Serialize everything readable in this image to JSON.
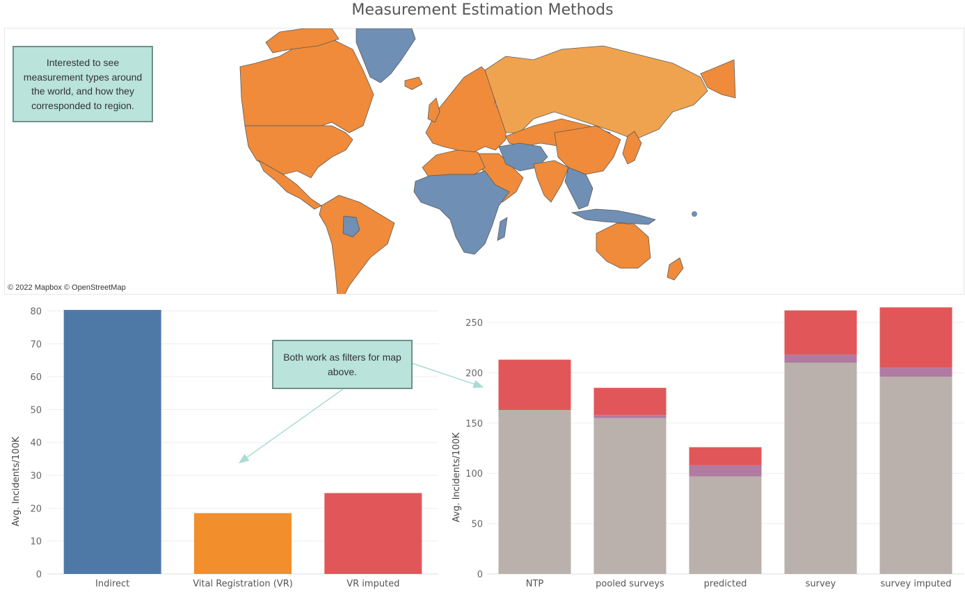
{
  "page": {
    "title": "Measurement Estimation Methods"
  },
  "map": {
    "attribution": "© 2022 Mapbox © OpenStreetMap",
    "colors": {
      "orange": "#ef8b3a",
      "light_orange": "#f0a34f",
      "blue": "#6f8fb5",
      "border": "#5a5a5a"
    },
    "annotation": "Interested to see measurement types around the world, and how they corresponded to region."
  },
  "filters_annotation": "Both work as filters for map above.",
  "chart_data": [
    {
      "type": "bar",
      "categories": [
        "Indirect",
        "Vital Registration (VR)",
        "VR imputed"
      ],
      "values": [
        80.3,
        18.5,
        24.6
      ],
      "colors": [
        "#4e79a7",
        "#f28e2b",
        "#e15759"
      ],
      "title": "",
      "xlabel": "",
      "ylabel": "Avg. Incidents/100K",
      "ylim": [
        0,
        82
      ],
      "yticks": [
        0,
        10,
        20,
        30,
        40,
        50,
        60,
        70,
        80
      ],
      "grid": true
    },
    {
      "type": "bar",
      "stacked": true,
      "categories": [
        "NTP",
        "pooled surveys",
        "predicted",
        "survey",
        "survey imputed"
      ],
      "series": [
        {
          "values": [
            163,
            155,
            97,
            210,
            196
          ],
          "color": "#bab0ac"
        },
        {
          "values": [
            0,
            3,
            11,
            8,
            9
          ],
          "color": "#b07aa1"
        },
        {
          "values": [
            50,
            27,
            18,
            44,
            60
          ],
          "color": "#e15759"
        }
      ],
      "title": "",
      "xlabel": "",
      "ylabel": "Avg. Incidents/100K",
      "ylim": [
        0,
        268
      ],
      "yticks": [
        0,
        50,
        100,
        150,
        200,
        250
      ],
      "grid": true
    }
  ]
}
